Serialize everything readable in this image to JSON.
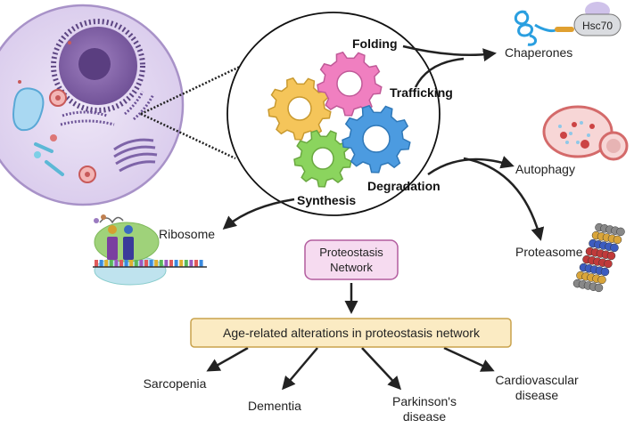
{
  "processes": {
    "folding": "Folding",
    "trafficking": "Trafficking",
    "degradation": "Degradation",
    "synthesis": "Synthesis"
  },
  "outputs": {
    "chaperones": "Chaperones",
    "hsc70": "Hsc70",
    "autophagy": "Autophagy",
    "proteasome": "Proteasome",
    "ribosome": "Ribosome"
  },
  "network": {
    "line1": "Proteostasis",
    "line2": "Network"
  },
  "alterations": "Age-related alterations in proteostasis network",
  "diseases": {
    "sarcopenia": "Sarcopenia",
    "dementia": "Dementia",
    "parkinsons_line1": "Parkinson's",
    "parkinsons_line2": "disease",
    "cardio_line1": "Cardiovascular",
    "cardio_line2": "disease"
  },
  "colors": {
    "gear_yellow": "#F5C55A",
    "gear_pink": "#F07FC0",
    "gear_blue": "#4C9BE0",
    "gear_green": "#8BD45E",
    "network_box": "#F6DBF0",
    "network_border": "#B25C9E",
    "alteration_box": "#FBEBC3",
    "alteration_border": "#C9A24C",
    "cell_fill": "#E8DEF3",
    "nucleus": "#8C6AAE"
  }
}
